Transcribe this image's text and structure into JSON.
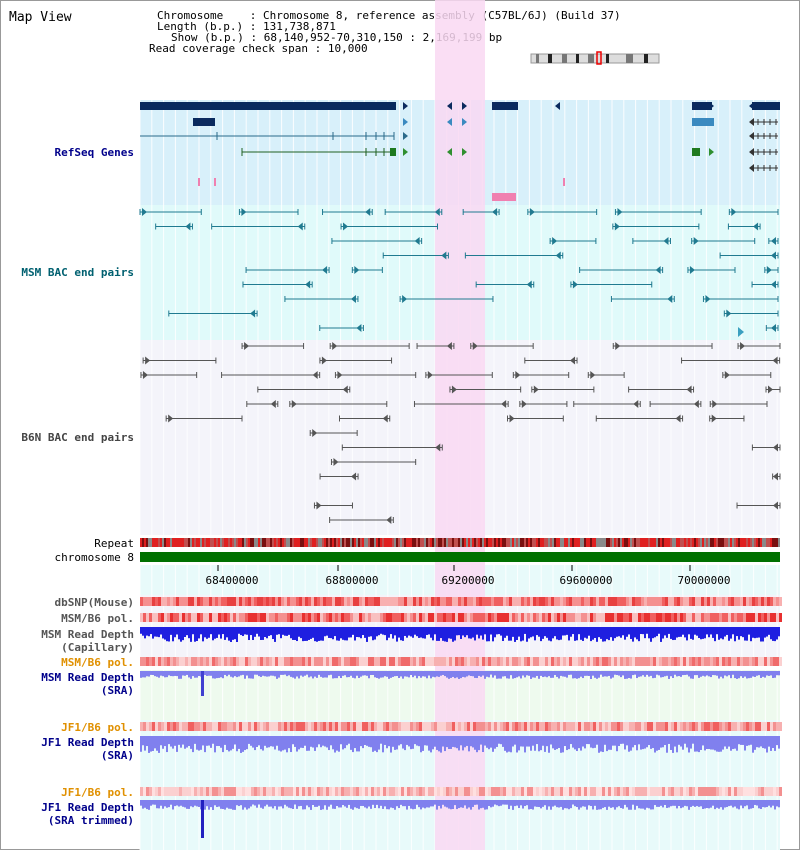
{
  "page": {
    "title": "Map View",
    "info": {
      "chromosome_label": "Chromosome",
      "chromosome_value": "Chromosome 8, reference assembly (C57BL/6J) (Build 37)",
      "length_label": "Length (b.p.)",
      "length_value": "131,738,871",
      "show_label": "Show (b.p.)",
      "show_value": "68,140,952-70,310,150 : 2,169,199 bp",
      "span_label": "Read coverage check span",
      "span_value": "10,000"
    }
  },
  "tracks": {
    "refseq": "RefSeq Genes",
    "msm_bac": "MSM BAC end pairs",
    "b6n_bac": "B6N BAC end pairs",
    "repeat": "Repeat",
    "chromosome": "chromosome 8",
    "dbsnp": "dbSNP(Mouse)",
    "msm_b6_pol_1": "MSM/B6 pol.",
    "msm_read_depth_cap_1": "MSM Read Depth",
    "msm_read_depth_cap_2": "(Capillary)",
    "msm_b6_pol_2": "MSM/B6 pol.",
    "msm_read_depth_sra_1": "MSM Read Depth",
    "msm_read_depth_sra_2": "(SRA)",
    "jf1_b6_pol_1": "JF1/B6 pol.",
    "jf1_read_depth_sra_1": "JF1 Read Depth",
    "jf1_read_depth_sra_2": "(SRA)",
    "jf1_b6_pol_2": "JF1/B6 pol.",
    "jf1_read_depth_trim_1": "JF1 Read Depth",
    "jf1_read_depth_trim_2": "(SRA trimmed)"
  },
  "axis": {
    "ticks": [
      "68400000",
      "68800000",
      "69200000",
      "69600000",
      "70000000"
    ]
  },
  "colors": {
    "refseq_bg": "#d8f0fa",
    "msm_bg": "#e0fafa",
    "highlight": "#f9d8f2",
    "chromosome": "#007000",
    "depth_dark": "#1f1fe0",
    "depth_light": "#8080ee",
    "label_blue": "#00008b",
    "label_teal": "#006070",
    "label_gray": "#333333",
    "label_orange": "#e09000"
  }
}
